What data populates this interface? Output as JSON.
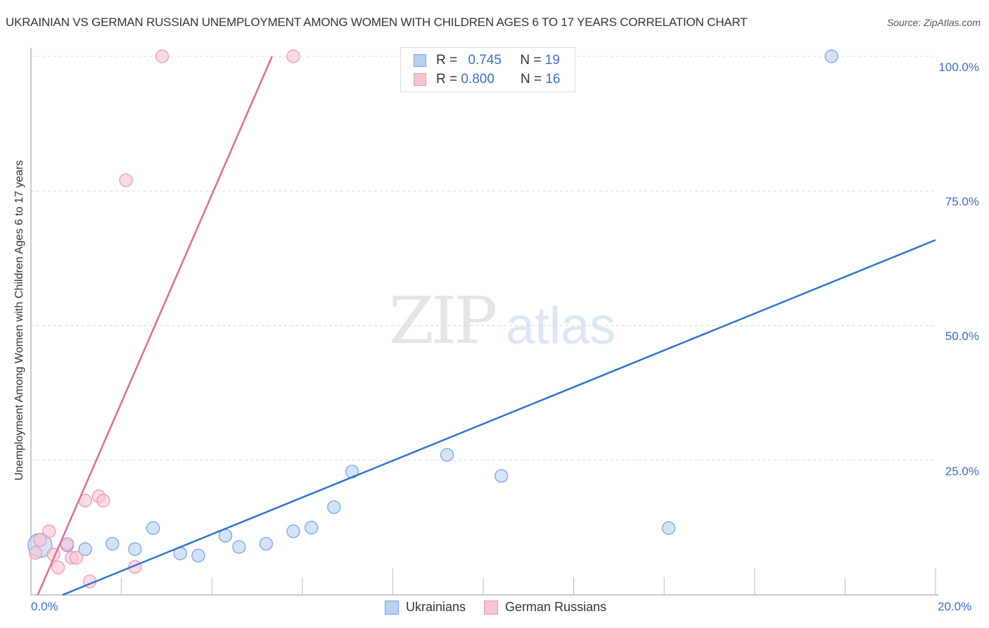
{
  "header": {
    "title": "UKRAINIAN VS GERMAN RUSSIAN UNEMPLOYMENT AMONG WOMEN WITH CHILDREN AGES 6 TO 17 YEARS CORRELATION CHART",
    "source": "Source: ZipAtlas.com"
  },
  "watermark": {
    "zip": "ZIP",
    "atlas": "atlas"
  },
  "axes": {
    "ylabel": "Unemployment Among Women with Children Ages 6 to 17 years",
    "y_ticks": [
      "100.0%",
      "75.0%",
      "50.0%",
      "25.0%"
    ],
    "x_ticks": [
      "0.0%",
      "20.0%"
    ]
  },
  "legend": {
    "rows": [
      {
        "r_label": "R =",
        "r_value": "0.745",
        "n_label": "N =",
        "n_value": "19"
      },
      {
        "r_label": "R =",
        "r_value": "0.800",
        "n_label": "N =",
        "n_value": "16"
      }
    ]
  },
  "bottom_legend": {
    "items": [
      {
        "label": "Ukrainians"
      },
      {
        "label": "German Russians"
      }
    ]
  },
  "colors": {
    "ukrainians_fill": "#b8d1f3",
    "ukrainians_stroke": "#6f9fe0",
    "ukrainians_line": "#2f74d0",
    "german_russians_fill": "#f9c4d4",
    "german_russians_stroke": "#ee92ae",
    "german_russians_line": "#e06a92",
    "tick_text": "#3a6fc4"
  },
  "chart_data": {
    "type": "scatter",
    "title": "UKRAINIAN VS GERMAN RUSSIAN UNEMPLOYMENT AMONG WOMEN WITH CHILDREN AGES 6 TO 17 YEARS CORRELATION CHART",
    "xlabel": "",
    "ylabel": "Unemployment Among Women with Children Ages 6 to 17 years",
    "xlim": [
      0,
      20
    ],
    "ylim": [
      0,
      100
    ],
    "x_tick_labels": [
      "0.0%",
      "20.0%"
    ],
    "y_tick_labels": [
      "25.0%",
      "50.0%",
      "75.0%",
      "100.0%"
    ],
    "grid": true,
    "legend_position": "top-center and bottom",
    "series": [
      {
        "name": "Ukrainians",
        "R": 0.745,
        "N": 19,
        "points": [
          [
            0.2,
            9.2
          ],
          [
            0.8,
            9.2
          ],
          [
            1.2,
            8.5
          ],
          [
            1.8,
            9.5
          ],
          [
            2.3,
            8.5
          ],
          [
            2.7,
            12.4
          ],
          [
            3.3,
            7.7
          ],
          [
            3.7,
            7.3
          ],
          [
            4.3,
            11.0
          ],
          [
            4.6,
            8.9
          ],
          [
            5.2,
            9.5
          ],
          [
            5.8,
            11.8
          ],
          [
            6.2,
            12.5
          ],
          [
            6.7,
            16.3
          ],
          [
            7.1,
            22.9
          ],
          [
            9.2,
            26.0
          ],
          [
            10.4,
            22.1
          ],
          [
            14.1,
            12.4
          ],
          [
            17.7,
            100.0
          ]
        ],
        "trendline": {
          "x": [
            0.7,
            20.0
          ],
          "y": [
            0.0,
            65.9
          ]
        }
      },
      {
        "name": "German Russians",
        "R": 0.8,
        "N": 16,
        "points": [
          [
            2.9,
            100.0
          ],
          [
            5.8,
            100.0
          ],
          [
            2.1,
            77.0
          ],
          [
            1.2,
            17.5
          ],
          [
            1.5,
            18.3
          ],
          [
            1.6,
            17.5
          ],
          [
            0.4,
            11.8
          ],
          [
            0.2,
            10.2
          ],
          [
            0.1,
            7.8
          ],
          [
            0.8,
            9.5
          ],
          [
            0.5,
            7.5
          ],
          [
            0.6,
            5.1
          ],
          [
            0.9,
            6.9
          ],
          [
            1.0,
            6.9
          ],
          [
            1.3,
            2.5
          ],
          [
            2.3,
            5.2
          ]
        ],
        "trendline": {
          "x": [
            0.15,
            5.33
          ],
          "y": [
            0.0,
            100.0
          ]
        }
      }
    ]
  }
}
